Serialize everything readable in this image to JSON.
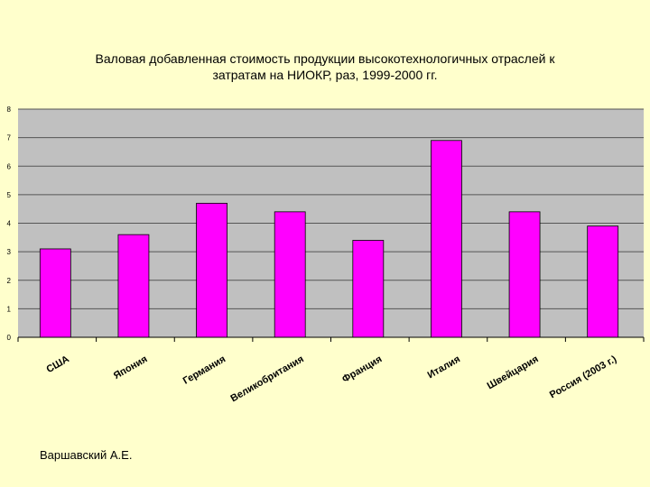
{
  "colors": {
    "background": "#ffffcc",
    "plot_area": "#c0c0c0",
    "bar_fill": "#ff00ff",
    "bar_stroke": "#000000",
    "grid": "#555555"
  },
  "author": "Варшавский А.Е.",
  "chart_data": {
    "type": "bar",
    "title": "Валовая добавленная стоимость продукции высокотехнологичных отраслей к\nзатратам на НИОКР, раз, 1999-2000 гг.",
    "categories": [
      "США",
      "Япония",
      "Германия",
      "Великобритания",
      "Франция",
      "Италия",
      "Швейцария",
      "Россия (2003 г.)"
    ],
    "values": [
      3.1,
      3.6,
      4.7,
      4.4,
      3.4,
      6.9,
      4.4,
      3.9
    ],
    "ylim": [
      0,
      8
    ],
    "yticks": [
      "0",
      "1",
      "2",
      "3",
      "4",
      "5",
      "6",
      "7",
      "8"
    ],
    "grid": true,
    "legend": "none"
  }
}
